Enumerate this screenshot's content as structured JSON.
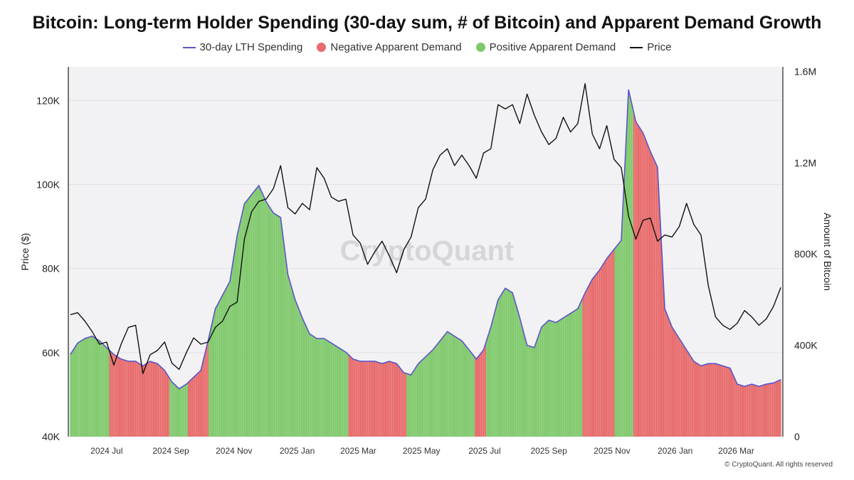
{
  "chart_data": {
    "type": "bar",
    "title": "Bitcoin: Long-term Holder Spending (30-day sum, # of Bitcoin) and Apparent Demand Growth",
    "legend": {
      "placement": "top-center",
      "entries": [
        {
          "label": "30-day LTH Spending",
          "kind": "line",
          "color": "#5a55c8"
        },
        {
          "label": "Negative Apparent Demand",
          "kind": "dot",
          "color": "#e86a6a"
        },
        {
          "label": "Positive Apparent Demand",
          "kind": "dot",
          "color": "#7fc96b"
        },
        {
          "label": "Price",
          "kind": "line",
          "color": "#111111"
        }
      ]
    },
    "y_left": {
      "label": "Price ($)",
      "range": [
        40000,
        128000
      ],
      "ticks": [
        40000,
        60000,
        80000,
        100000,
        120000
      ],
      "tick_labels": [
        "40K",
        "60K",
        "80K",
        "100K",
        "120K"
      ]
    },
    "y_right": {
      "label": "Amount of Bitcoin",
      "range": [
        0,
        1620000
      ],
      "ticks": [
        0,
        400000,
        800000,
        1200000,
        1600000
      ],
      "tick_labels": [
        "0",
        "400K",
        "800K",
        "1.2M",
        "1.6M"
      ]
    },
    "x_axis": {
      "label": "",
      "range": [
        "2024-05-25",
        "2026-04-15"
      ],
      "ticks": [
        {
          "date": "2024-07-01",
          "label": "2024 Jul"
        },
        {
          "date": "2024-09-01",
          "label": "2024 Sep"
        },
        {
          "date": "2024-11-01",
          "label": "2024 Nov"
        },
        {
          "date": "2025-01-01",
          "label": "2025 Jan"
        },
        {
          "date": "2025-03-01",
          "label": "2025 Mar"
        },
        {
          "date": "2025-05-01",
          "label": "2025 May"
        },
        {
          "date": "2025-07-01",
          "label": "2025 Jul"
        },
        {
          "date": "2025-09-01",
          "label": "2025 Sep"
        },
        {
          "date": "2025-11-01",
          "label": "2025 Nov"
        },
        {
          "date": "2026-01-01",
          "label": "2026 Jan"
        },
        {
          "date": "2026-03-01",
          "label": "2026 Mar"
        }
      ]
    },
    "grid": true,
    "watermark": "CryptoQuant",
    "copyright": "© CryptoQuant. All rights reserved",
    "series": [
      {
        "name": "30-day LTH Spending",
        "axis": "right",
        "type": "area-bar",
        "points": [
          [
            "2024-05-27",
            360000
          ],
          [
            "2024-06-03",
            410000
          ],
          [
            "2024-06-10",
            430000
          ],
          [
            "2024-06-17",
            440000
          ],
          [
            "2024-06-24",
            420000
          ],
          [
            "2024-07-01",
            390000
          ],
          [
            "2024-07-08",
            360000
          ],
          [
            "2024-07-15",
            340000
          ],
          [
            "2024-07-22",
            330000
          ],
          [
            "2024-07-29",
            330000
          ],
          [
            "2024-08-05",
            310000
          ],
          [
            "2024-08-12",
            330000
          ],
          [
            "2024-08-19",
            320000
          ],
          [
            "2024-08-26",
            290000
          ],
          [
            "2024-09-02",
            240000
          ],
          [
            "2024-09-09",
            210000
          ],
          [
            "2024-09-16",
            230000
          ],
          [
            "2024-09-23",
            260000
          ],
          [
            "2024-09-30",
            290000
          ],
          [
            "2024-10-07",
            420000
          ],
          [
            "2024-10-14",
            560000
          ],
          [
            "2024-10-21",
            620000
          ],
          [
            "2024-10-28",
            680000
          ],
          [
            "2024-11-04",
            880000
          ],
          [
            "2024-11-11",
            1020000
          ],
          [
            "2024-11-18",
            1060000
          ],
          [
            "2024-11-25",
            1100000
          ],
          [
            "2024-12-02",
            1030000
          ],
          [
            "2024-12-09",
            980000
          ],
          [
            "2024-12-16",
            960000
          ],
          [
            "2024-12-23",
            710000
          ],
          [
            "2024-12-30",
            600000
          ],
          [
            "2025-01-06",
            520000
          ],
          [
            "2025-01-13",
            450000
          ],
          [
            "2025-01-20",
            430000
          ],
          [
            "2025-01-27",
            430000
          ],
          [
            "2025-02-03",
            410000
          ],
          [
            "2025-02-10",
            390000
          ],
          [
            "2025-02-17",
            370000
          ],
          [
            "2025-02-24",
            340000
          ],
          [
            "2025-03-03",
            330000
          ],
          [
            "2025-03-10",
            330000
          ],
          [
            "2025-03-17",
            330000
          ],
          [
            "2025-03-24",
            320000
          ],
          [
            "2025-03-31",
            330000
          ],
          [
            "2025-04-07",
            320000
          ],
          [
            "2025-04-14",
            280000
          ],
          [
            "2025-04-21",
            270000
          ],
          [
            "2025-04-28",
            320000
          ],
          [
            "2025-05-05",
            350000
          ],
          [
            "2025-05-12",
            380000
          ],
          [
            "2025-05-19",
            420000
          ],
          [
            "2025-05-26",
            460000
          ],
          [
            "2025-06-02",
            440000
          ],
          [
            "2025-06-09",
            420000
          ],
          [
            "2025-06-16",
            380000
          ],
          [
            "2025-06-23",
            340000
          ],
          [
            "2025-06-30",
            380000
          ],
          [
            "2025-07-07",
            480000
          ],
          [
            "2025-07-14",
            600000
          ],
          [
            "2025-07-21",
            650000
          ],
          [
            "2025-07-28",
            630000
          ],
          [
            "2025-08-04",
            520000
          ],
          [
            "2025-08-11",
            400000
          ],
          [
            "2025-08-18",
            390000
          ],
          [
            "2025-08-25",
            480000
          ],
          [
            "2025-09-01",
            510000
          ],
          [
            "2025-09-08",
            500000
          ],
          [
            "2025-09-15",
            520000
          ],
          [
            "2025-09-22",
            540000
          ],
          [
            "2025-09-29",
            560000
          ],
          [
            "2025-10-06",
            630000
          ],
          [
            "2025-10-13",
            690000
          ],
          [
            "2025-10-20",
            730000
          ],
          [
            "2025-10-27",
            780000
          ],
          [
            "2025-11-03",
            820000
          ],
          [
            "2025-11-10",
            860000
          ],
          [
            "2025-11-17",
            1520000
          ],
          [
            "2025-11-24",
            1380000
          ],
          [
            "2025-12-01",
            1330000
          ],
          [
            "2025-12-08",
            1250000
          ],
          [
            "2025-12-15",
            1180000
          ],
          [
            "2025-12-22",
            560000
          ],
          [
            "2025-12-29",
            480000
          ],
          [
            "2026-01-05",
            430000
          ],
          [
            "2026-01-12",
            380000
          ],
          [
            "2026-01-19",
            330000
          ],
          [
            "2026-01-26",
            310000
          ],
          [
            "2026-02-02",
            320000
          ],
          [
            "2026-02-09",
            320000
          ],
          [
            "2026-02-16",
            310000
          ],
          [
            "2026-02-23",
            300000
          ],
          [
            "2026-03-02",
            230000
          ],
          [
            "2026-03-09",
            220000
          ],
          [
            "2026-03-16",
            230000
          ],
          [
            "2026-03-23",
            220000
          ],
          [
            "2026-03-30",
            230000
          ],
          [
            "2026-04-06",
            235000
          ],
          [
            "2026-04-13",
            250000
          ]
        ]
      },
      {
        "name": "Price",
        "axis": "left",
        "type": "line",
        "points": [
          [
            "2024-05-27",
            69000
          ],
          [
            "2024-06-03",
            69500
          ],
          [
            "2024-06-10",
            67500
          ],
          [
            "2024-06-17",
            65000
          ],
          [
            "2024-06-24",
            62000
          ],
          [
            "2024-07-01",
            62500
          ],
          [
            "2024-07-08",
            57000
          ],
          [
            "2024-07-15",
            62000
          ],
          [
            "2024-07-22",
            66000
          ],
          [
            "2024-07-29",
            66500
          ],
          [
            "2024-08-05",
            55000
          ],
          [
            "2024-08-12",
            59500
          ],
          [
            "2024-08-19",
            60500
          ],
          [
            "2024-08-26",
            62500
          ],
          [
            "2024-09-02",
            57500
          ],
          [
            "2024-09-09",
            56000
          ],
          [
            "2024-09-16",
            60000
          ],
          [
            "2024-09-23",
            63500
          ],
          [
            "2024-09-30",
            62000
          ],
          [
            "2024-10-07",
            62500
          ],
          [
            "2024-10-14",
            66000
          ],
          [
            "2024-10-21",
            67500
          ],
          [
            "2024-10-28",
            71000
          ],
          [
            "2024-11-04",
            72000
          ],
          [
            "2024-11-11",
            87000
          ],
          [
            "2024-11-18",
            93500
          ],
          [
            "2024-11-25",
            96000
          ],
          [
            "2024-12-02",
            96500
          ],
          [
            "2024-12-09",
            99000
          ],
          [
            "2024-12-16",
            104500
          ],
          [
            "2024-12-23",
            94500
          ],
          [
            "2024-12-30",
            93000
          ],
          [
            "2025-01-06",
            95500
          ],
          [
            "2025-01-13",
            94000
          ],
          [
            "2025-01-20",
            104000
          ],
          [
            "2025-01-27",
            101500
          ],
          [
            "2025-02-03",
            97000
          ],
          [
            "2025-02-10",
            96000
          ],
          [
            "2025-02-17",
            96500
          ],
          [
            "2025-02-24",
            88000
          ],
          [
            "2025-03-03",
            86000
          ],
          [
            "2025-03-10",
            81000
          ],
          [
            "2025-03-17",
            84000
          ],
          [
            "2025-03-24",
            86500
          ],
          [
            "2025-03-31",
            83000
          ],
          [
            "2025-04-07",
            79000
          ],
          [
            "2025-04-14",
            84500
          ],
          [
            "2025-04-21",
            87500
          ],
          [
            "2025-04-28",
            94500
          ],
          [
            "2025-05-05",
            96500
          ],
          [
            "2025-05-12",
            103500
          ],
          [
            "2025-05-19",
            107000
          ],
          [
            "2025-05-26",
            108500
          ],
          [
            "2025-06-02",
            104500
          ],
          [
            "2025-06-09",
            107000
          ],
          [
            "2025-06-16",
            104500
          ],
          [
            "2025-06-23",
            101500
          ],
          [
            "2025-06-30",
            107500
          ],
          [
            "2025-07-07",
            108500
          ],
          [
            "2025-07-14",
            119000
          ],
          [
            "2025-07-21",
            118000
          ],
          [
            "2025-07-28",
            119000
          ],
          [
            "2025-08-04",
            114500
          ],
          [
            "2025-08-11",
            121500
          ],
          [
            "2025-08-18",
            116500
          ],
          [
            "2025-08-25",
            112500
          ],
          [
            "2025-09-01",
            109500
          ],
          [
            "2025-09-08",
            111000
          ],
          [
            "2025-09-15",
            116000
          ],
          [
            "2025-09-22",
            112500
          ],
          [
            "2025-09-29",
            114500
          ],
          [
            "2025-10-06",
            124000
          ],
          [
            "2025-10-13",
            112000
          ],
          [
            "2025-10-20",
            108500
          ],
          [
            "2025-10-27",
            114000
          ],
          [
            "2025-11-03",
            106000
          ],
          [
            "2025-11-10",
            104000
          ],
          [
            "2025-11-17",
            92500
          ],
          [
            "2025-11-24",
            87000
          ],
          [
            "2025-12-01",
            91500
          ],
          [
            "2025-12-08",
            92000
          ],
          [
            "2025-12-15",
            86500
          ],
          [
            "2025-12-22",
            88000
          ],
          [
            "2025-12-29",
            87500
          ],
          [
            "2026-01-05",
            90000
          ],
          [
            "2026-01-12",
            95500
          ],
          [
            "2026-01-19",
            90500
          ],
          [
            "2026-01-26",
            88000
          ],
          [
            "2026-02-02",
            76000
          ],
          [
            "2026-02-09",
            68500
          ],
          [
            "2026-02-16",
            66500
          ],
          [
            "2026-02-23",
            65500
          ],
          [
            "2026-03-02",
            67000
          ],
          [
            "2026-03-09",
            70000
          ],
          [
            "2026-03-16",
            68500
          ],
          [
            "2026-03-23",
            66500
          ],
          [
            "2026-03-30",
            68000
          ],
          [
            "2026-04-06",
            71000
          ],
          [
            "2026-04-13",
            75500
          ]
        ]
      },
      {
        "name": "Apparent Demand",
        "type": "bar-color",
        "segments": [
          [
            "2024-05-27",
            "2024-07-04",
            "positive"
          ],
          [
            "2024-07-04",
            "2024-08-31",
            "negative"
          ],
          [
            "2024-08-31",
            "2024-09-18",
            "positive"
          ],
          [
            "2024-09-18",
            "2024-10-08",
            "negative"
          ],
          [
            "2024-10-08",
            "2025-02-20",
            "positive"
          ],
          [
            "2025-02-20",
            "2025-04-17",
            "negative"
          ],
          [
            "2025-04-17",
            "2025-06-22",
            "positive"
          ],
          [
            "2025-06-22",
            "2025-07-03",
            "negative"
          ],
          [
            "2025-07-03",
            "2025-10-04",
            "positive"
          ],
          [
            "2025-10-04",
            "2025-11-04",
            "negative"
          ],
          [
            "2025-11-04",
            "2025-11-22",
            "positive"
          ],
          [
            "2025-11-22",
            "2026-04-15",
            "negative"
          ]
        ]
      }
    ]
  }
}
